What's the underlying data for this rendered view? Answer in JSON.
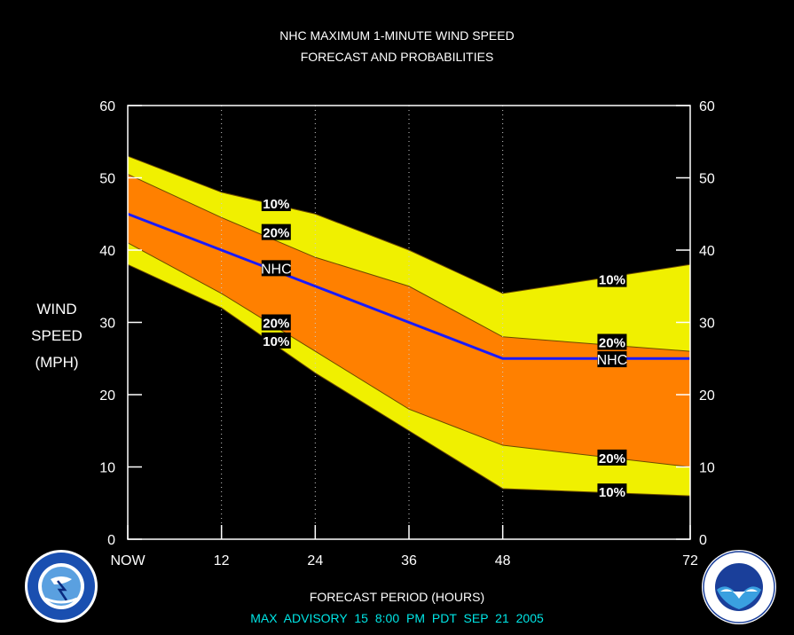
{
  "header": {
    "title_line1": "NHC MAXIMUM 1-MINUTE WIND SPEED",
    "title_line2": "FORECAST AND PROBABILITIES"
  },
  "footer": {
    "advisory": "MAX   ADVISORY  15  8:00  PM  PDT  SEP  21  2005"
  },
  "logos": {
    "left": "nws-logo",
    "right": "noaa-logo"
  },
  "colors": {
    "background": "#000000",
    "band_10": "#f0f000",
    "band_20": "#ff8000",
    "nhc_line": "#1a1aff",
    "advisory_text": "#00e5e5"
  },
  "chart_data": {
    "type": "area",
    "title": "NHC MAXIMUM 1-MINUTE WIND SPEED FORECAST AND PROBABILITIES",
    "xlabel": "FORECAST PERIOD (HOURS)",
    "ylabel_lines": [
      "WIND",
      "SPEED",
      "(MPH)"
    ],
    "xlim": [
      0,
      72
    ],
    "ylim": [
      0,
      60
    ],
    "x_ticks": [
      {
        "value": 0,
        "label": "NOW"
      },
      {
        "value": 12,
        "label": "12"
      },
      {
        "value": 24,
        "label": "24"
      },
      {
        "value": 36,
        "label": "36"
      },
      {
        "value": 48,
        "label": "48"
      },
      {
        "value": 72,
        "label": "72"
      }
    ],
    "y_ticks": [
      0,
      10,
      20,
      30,
      40,
      50,
      60
    ],
    "grid_x": [
      12,
      24,
      36,
      48
    ],
    "x": [
      0,
      12,
      24,
      36,
      48,
      72
    ],
    "series": [
      {
        "name": "10%",
        "role": "upper",
        "values": [
          53,
          48,
          45,
          40,
          34,
          38
        ]
      },
      {
        "name": "20%",
        "role": "upper",
        "values": [
          50.5,
          44.5,
          39,
          35,
          28,
          26
        ]
      },
      {
        "name": "NHC",
        "role": "forecast",
        "values": [
          45,
          40,
          35,
          30,
          25,
          25
        ]
      },
      {
        "name": "20%",
        "role": "lower",
        "values": [
          41,
          34,
          26,
          18,
          13,
          10
        ]
      },
      {
        "name": "10%",
        "role": "lower",
        "values": [
          38,
          32,
          23,
          15,
          7,
          6
        ]
      }
    ],
    "labels": [
      {
        "text": "10%",
        "x": 19,
        "y": 46.5
      },
      {
        "text": "20%",
        "x": 19,
        "y": 42.5
      },
      {
        "text": "NHC",
        "x": 19,
        "y": 37.5
      },
      {
        "text": "20%",
        "x": 19,
        "y": 30
      },
      {
        "text": "10%",
        "x": 19,
        "y": 27.5
      },
      {
        "text": "10%",
        "x": 62,
        "y": 36
      },
      {
        "text": "20%",
        "x": 62,
        "y": 27.3
      },
      {
        "text": "NHC",
        "x": 62,
        "y": 24.9
      },
      {
        "text": "20%",
        "x": 62,
        "y": 11.3
      },
      {
        "text": "10%",
        "x": 62,
        "y": 6.6
      }
    ]
  }
}
